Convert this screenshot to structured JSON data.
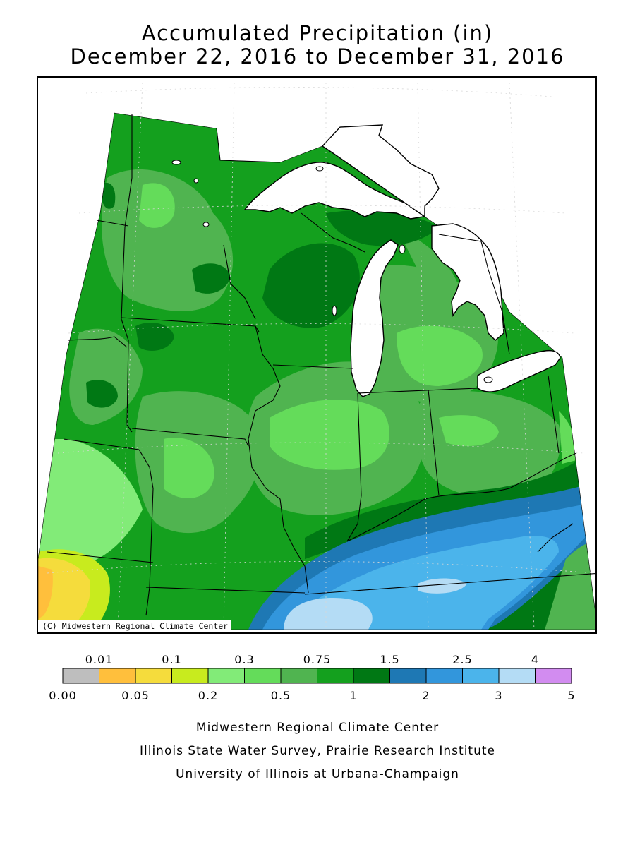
{
  "title": {
    "line1": "Accumulated Precipitation (in)",
    "line2": "December 22, 2016 to December 31, 2016"
  },
  "copyright": "(C) Midwestern Regional Climate Center",
  "legend": {
    "upper_labels": [
      "0.01",
      "0.1",
      "0.3",
      "0.75",
      "1.5",
      "2.5",
      "4"
    ],
    "lower_labels": [
      "0.00",
      "0.05",
      "0.2",
      "0.5",
      "1",
      "2",
      "3",
      "5"
    ],
    "bins": [
      {
        "color": "#bebebe"
      },
      {
        "color": "#ffbf3c"
      },
      {
        "color": "#f5dc3c"
      },
      {
        "color": "#c8eb1e"
      },
      {
        "color": "#82eb78"
      },
      {
        "color": "#64dc5a"
      },
      {
        "color": "#50b450"
      },
      {
        "color": "#14a01e"
      },
      {
        "color": "#007814"
      },
      {
        "color": "#1e78b4"
      },
      {
        "color": "#3296dc"
      },
      {
        "color": "#4bb4eb"
      },
      {
        "color": "#b4dcf5"
      },
      {
        "color": "#d28cf0"
      }
    ]
  },
  "credits": [
    "Midwestern Regional Climate Center",
    "Illinois State Water Survey, Prairie Research Institute",
    "University of Illinois at Urbana-Champaign"
  ]
}
